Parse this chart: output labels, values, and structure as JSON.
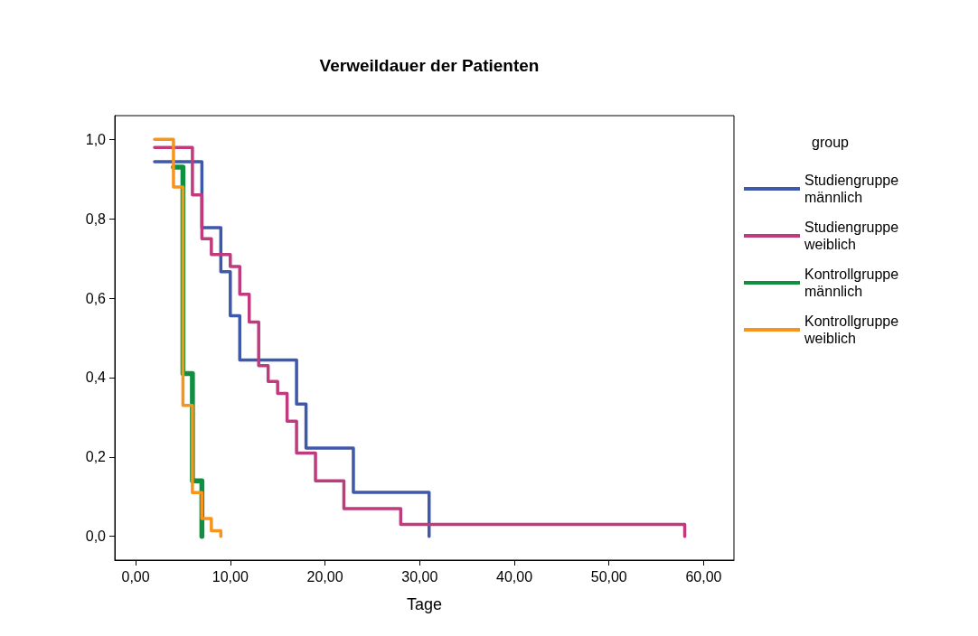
{
  "chart_data": {
    "type": "step",
    "title": "Verweildauer der Patienten",
    "xlabel": "Tage",
    "legend_title": "group",
    "legend": "right",
    "grid": false,
    "marker": "none",
    "line_style": "solid",
    "xlim": [
      -2.2,
      63.2
    ],
    "ylim": [
      -0.06,
      1.06
    ],
    "xticks": [
      {
        "value": 0,
        "label": "0,00"
      },
      {
        "value": 10,
        "label": "10,00"
      },
      {
        "value": 20,
        "label": "20,00"
      },
      {
        "value": 30,
        "label": "30,00"
      },
      {
        "value": 40,
        "label": "40,00"
      },
      {
        "value": 50,
        "label": "50,00"
      },
      {
        "value": 60,
        "label": "60,00"
      }
    ],
    "yticks": [
      {
        "value": 0,
        "label": "0,0"
      },
      {
        "value": 0.2,
        "label": "0,2"
      },
      {
        "value": 0.4,
        "label": "0,4"
      },
      {
        "value": 0.6,
        "label": "0,6"
      },
      {
        "value": 0.8,
        "label": "0,8"
      },
      {
        "value": 1,
        "label": "1,0"
      }
    ],
    "series": [
      {
        "name": "Studiengruppe männlich",
        "color": "#3e58ac",
        "x": [
          2,
          7,
          9,
          10,
          11,
          17,
          18,
          23,
          31
        ],
        "values": [
          0.944,
          0.778,
          0.667,
          0.556,
          0.444,
          0.333,
          0.222,
          0.111,
          0
        ]
      },
      {
        "name": "Studiengruppe weiblich",
        "color": "#bf3b7d",
        "x": [
          2,
          6,
          7,
          8,
          10,
          11,
          12,
          13,
          14,
          15,
          16,
          17,
          19,
          22,
          28,
          58
        ],
        "values": [
          0.98,
          0.86,
          0.75,
          0.71,
          0.68,
          0.61,
          0.54,
          0.43,
          0.39,
          0.36,
          0.29,
          0.21,
          0.14,
          0.07,
          0.03,
          0
        ]
      },
      {
        "name": "Kontrollgruppe männlich",
        "color": "#0f8f3f",
        "x": [
          4,
          5,
          6,
          7
        ],
        "values": [
          0.93,
          0.41,
          0.14,
          0
        ]
      },
      {
        "name": "Kontrollgruppe weiblich",
        "color": "#f7941d",
        "x": [
          2,
          4,
          5,
          6,
          7,
          8,
          9
        ],
        "values": [
          1.0,
          0.88,
          0.33,
          0.11,
          0.045,
          0.014,
          0
        ]
      }
    ]
  }
}
